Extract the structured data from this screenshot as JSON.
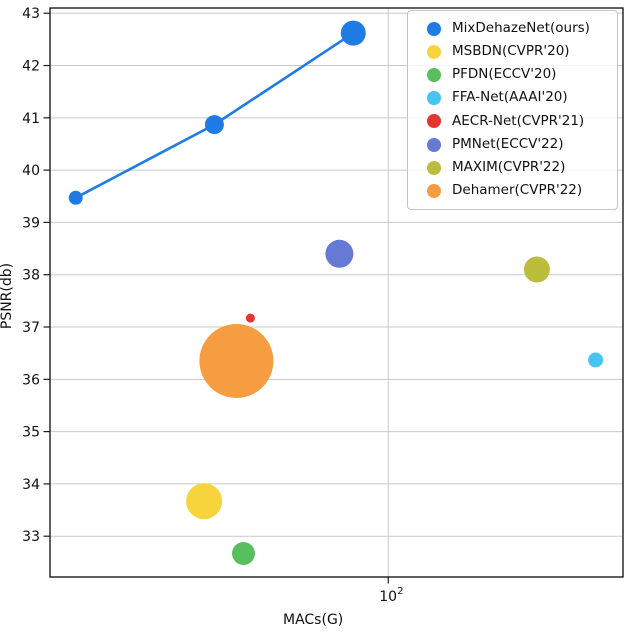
{
  "figure": {
    "background": "#ffffff",
    "frame_color": "#1c1c1c",
    "grid_color": "#c9c9c9",
    "tick_color": "#1c1c1c",
    "text_color": "#111111"
  },
  "chart_data": {
    "type": "scatter",
    "title": "",
    "xlabel": "MACs(G)",
    "ylabel": "PSNR(db)",
    "x_scale": "log",
    "xlim": [
      17.9,
      330
    ],
    "ylim": [
      32.22,
      43.1
    ],
    "grid": true,
    "legend_position": "upper right",
    "y_ticks": [
      43,
      42,
      41,
      40,
      39,
      38,
      37,
      36,
      35,
      34,
      33
    ],
    "x_ticks": [
      100
    ],
    "x_tick_label": {
      "base": "10",
      "exp": "2"
    },
    "series": [
      {
        "name": "MixDehazeNet(ours)",
        "color": "#1f7ce4",
        "line": true,
        "points": [
          {
            "macs": 20.4,
            "psnr": 39.47,
            "r": 7
          },
          {
            "macs": 41.3,
            "psnr": 40.87,
            "r": 9.5
          },
          {
            "macs": 83.7,
            "psnr": 42.62,
            "r": 12.5
          }
        ]
      },
      {
        "name": "MSBDN(CVPR'20)",
        "color": "#f8d43c",
        "line": false,
        "points": [
          {
            "macs": 39.2,
            "psnr": 33.67,
            "r": 18
          }
        ]
      },
      {
        "name": "PFDN(ECCV'20)",
        "color": "#59be5d",
        "line": false,
        "points": [
          {
            "macs": 47.9,
            "psnr": 32.67,
            "r": 11.5
          }
        ]
      },
      {
        "name": "FFA-Net(AAAI'20)",
        "color": "#47c4f0",
        "line": false,
        "points": [
          {
            "macs": 287,
            "psnr": 36.37,
            "r": 7.5
          }
        ]
      },
      {
        "name": "AECR-Net(CVPR'21)",
        "color": "#e63531",
        "line": false,
        "points": [
          {
            "macs": 49.6,
            "psnr": 37.17,
            "r": 4.5
          }
        ]
      },
      {
        "name": "PMNet(ECCV'22)",
        "color": "#6679d4",
        "line": false,
        "points": [
          {
            "macs": 78,
            "psnr": 38.4,
            "r": 14
          }
        ]
      },
      {
        "name": "MAXIM(CVPR'22)",
        "color": "#bcbd3d",
        "line": false,
        "points": [
          {
            "macs": 213,
            "psnr": 38.1,
            "r": 13
          }
        ]
      },
      {
        "name": "Dehamer(CVPR'22)",
        "color": "#f69d41",
        "line": false,
        "points": [
          {
            "macs": 46.2,
            "psnr": 36.35,
            "r": 37
          }
        ]
      }
    ]
  }
}
